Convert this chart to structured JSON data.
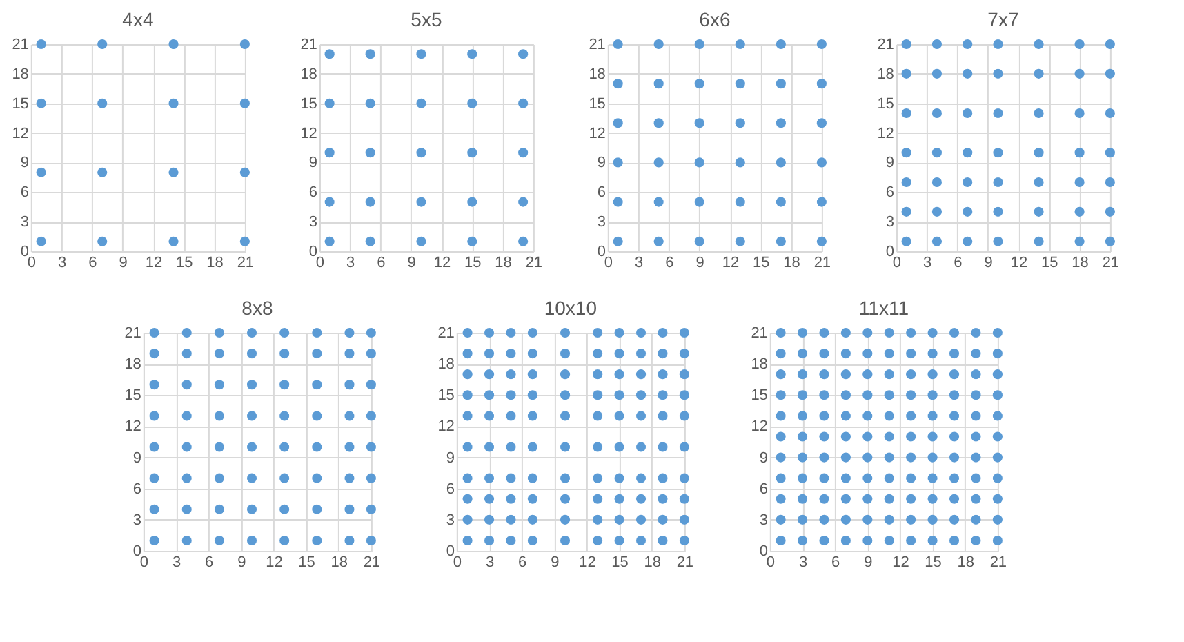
{
  "chart_data": [
    {
      "type": "scatter",
      "title": "4x4",
      "xlim": [
        0,
        21
      ],
      "ylim": [
        0,
        21
      ],
      "xticks": [
        0,
        3,
        6,
        9,
        12,
        15,
        18,
        21
      ],
      "yticks": [
        0,
        3,
        6,
        9,
        12,
        15,
        18,
        21
      ],
      "grid": true,
      "marker": "circle",
      "color": "#5b9bd5",
      "x": [
        1,
        7,
        14,
        21,
        1,
        7,
        14,
        21,
        1,
        7,
        14,
        21,
        1,
        7,
        14,
        21
      ],
      "values": [
        1,
        1,
        1,
        1,
        8,
        8,
        8,
        8,
        15,
        15,
        15,
        15,
        21,
        21,
        21,
        21
      ]
    },
    {
      "type": "scatter",
      "title": "5x5",
      "xlim": [
        0,
        21
      ],
      "ylim": [
        0,
        21
      ],
      "xticks": [
        0,
        3,
        6,
        9,
        12,
        15,
        18,
        21
      ],
      "yticks": [
        0,
        3,
        6,
        9,
        12,
        15,
        18,
        21
      ],
      "grid": true,
      "marker": "circle",
      "color": "#5b9bd5",
      "x": [
        1,
        5,
        10,
        15,
        20,
        1,
        5,
        10,
        15,
        20,
        1,
        5,
        10,
        15,
        20,
        1,
        5,
        10,
        15,
        20,
        1,
        5,
        10,
        15,
        20
      ],
      "values": [
        1,
        1,
        1,
        1,
        1,
        5,
        5,
        5,
        5,
        5,
        10,
        10,
        10,
        10,
        10,
        15,
        15,
        15,
        15,
        15,
        20,
        20,
        20,
        20,
        20
      ]
    },
    {
      "type": "scatter",
      "title": "6x6",
      "xlim": [
        0,
        21
      ],
      "ylim": [
        0,
        21
      ],
      "xticks": [
        0,
        3,
        6,
        9,
        12,
        15,
        18,
        21
      ],
      "yticks": [
        0,
        3,
        6,
        9,
        12,
        15,
        18,
        21
      ],
      "grid": true,
      "marker": "circle",
      "color": "#5b9bd5",
      "x": [
        1,
        5,
        9,
        13,
        17,
        21,
        1,
        5,
        9,
        13,
        17,
        21,
        1,
        5,
        9,
        13,
        17,
        21,
        1,
        5,
        9,
        13,
        17,
        21,
        1,
        5,
        9,
        13,
        17,
        21,
        1,
        5,
        9,
        13,
        17,
        21
      ],
      "values": [
        1,
        1,
        1,
        1,
        1,
        1,
        5,
        5,
        5,
        5,
        5,
        5,
        9,
        9,
        9,
        9,
        9,
        9,
        13,
        13,
        13,
        13,
        13,
        13,
        17,
        17,
        17,
        17,
        17,
        17,
        21,
        21,
        21,
        21,
        21,
        21
      ]
    },
    {
      "type": "scatter",
      "title": "7x7",
      "xlim": [
        0,
        21
      ],
      "ylim": [
        0,
        21
      ],
      "xticks": [
        0,
        3,
        6,
        9,
        12,
        15,
        18,
        21
      ],
      "yticks": [
        0,
        3,
        6,
        9,
        12,
        15,
        18,
        21
      ],
      "grid": true,
      "marker": "circle",
      "color": "#5b9bd5",
      "x": [
        1,
        4,
        7,
        10,
        14,
        18,
        21,
        1,
        4,
        7,
        10,
        14,
        18,
        21,
        1,
        4,
        7,
        10,
        14,
        18,
        21,
        1,
        4,
        7,
        10,
        14,
        18,
        21,
        1,
        4,
        7,
        10,
        14,
        18,
        21,
        1,
        4,
        7,
        10,
        14,
        18,
        21,
        1,
        4,
        7,
        10,
        14,
        18,
        21
      ],
      "values": [
        1,
        1,
        1,
        1,
        1,
        1,
        1,
        4,
        4,
        4,
        4,
        4,
        4,
        4,
        7,
        7,
        7,
        7,
        7,
        7,
        7,
        10,
        10,
        10,
        10,
        10,
        10,
        10,
        14,
        14,
        14,
        14,
        14,
        14,
        14,
        18,
        18,
        18,
        18,
        18,
        18,
        18,
        21,
        21,
        21,
        21,
        21,
        21,
        21
      ]
    },
    {
      "type": "scatter",
      "title": "8x8",
      "xlim": [
        0,
        21
      ],
      "ylim": [
        0,
        21
      ],
      "xticks": [
        0,
        3,
        6,
        9,
        12,
        15,
        18,
        21
      ],
      "yticks": [
        0,
        3,
        6,
        9,
        12,
        15,
        18,
        21
      ],
      "grid": true,
      "marker": "circle",
      "color": "#5b9bd5",
      "x": [
        1,
        4,
        7,
        10,
        13,
        16,
        19,
        21,
        1,
        4,
        7,
        10,
        13,
        16,
        19,
        21,
        1,
        4,
        7,
        10,
        13,
        16,
        19,
        21,
        1,
        4,
        7,
        10,
        13,
        16,
        19,
        21,
        1,
        4,
        7,
        10,
        13,
        16,
        19,
        21,
        1,
        4,
        7,
        10,
        13,
        16,
        19,
        21,
        1,
        4,
        7,
        10,
        13,
        16,
        19,
        21,
        1,
        4,
        7,
        10,
        13,
        16,
        19,
        21
      ],
      "values": [
        1,
        1,
        1,
        1,
        1,
        1,
        1,
        1,
        4,
        4,
        4,
        4,
        4,
        4,
        4,
        4,
        7,
        7,
        7,
        7,
        7,
        7,
        7,
        7,
        10,
        10,
        10,
        10,
        10,
        10,
        10,
        10,
        13,
        13,
        13,
        13,
        13,
        13,
        13,
        13,
        16,
        16,
        16,
        16,
        16,
        16,
        16,
        16,
        19,
        19,
        19,
        19,
        19,
        19,
        19,
        19,
        21,
        21,
        21,
        21,
        21,
        21,
        21,
        21
      ]
    },
    {
      "type": "scatter",
      "title": "10x10",
      "xlim": [
        0,
        21
      ],
      "ylim": [
        0,
        21
      ],
      "xticks": [
        0,
        3,
        6,
        9,
        12,
        15,
        18,
        21
      ],
      "yticks": [
        0,
        3,
        6,
        9,
        12,
        15,
        18,
        21
      ],
      "grid": true,
      "marker": "circle",
      "color": "#5b9bd5",
      "x": [
        1,
        3,
        5,
        7,
        10,
        13,
        15,
        17,
        19,
        21,
        1,
        3,
        5,
        7,
        10,
        13,
        15,
        17,
        19,
        21,
        1,
        3,
        5,
        7,
        10,
        13,
        15,
        17,
        19,
        21,
        1,
        3,
        5,
        7,
        10,
        13,
        15,
        17,
        19,
        21,
        1,
        3,
        5,
        7,
        10,
        13,
        15,
        17,
        19,
        21,
        1,
        3,
        5,
        7,
        10,
        13,
        15,
        17,
        19,
        21,
        1,
        3,
        5,
        7,
        10,
        13,
        15,
        17,
        19,
        21,
        1,
        3,
        5,
        7,
        10,
        13,
        15,
        17,
        19,
        21,
        1,
        3,
        5,
        7,
        10,
        13,
        15,
        17,
        19,
        21,
        1,
        3,
        5,
        7,
        10,
        13,
        15,
        17,
        19,
        21
      ],
      "values": [
        1,
        1,
        1,
        1,
        1,
        1,
        1,
        1,
        1,
        1,
        3,
        3,
        3,
        3,
        3,
        3,
        3,
        3,
        3,
        3,
        5,
        5,
        5,
        5,
        5,
        5,
        5,
        5,
        5,
        5,
        7,
        7,
        7,
        7,
        7,
        7,
        7,
        7,
        7,
        7,
        10,
        10,
        10,
        10,
        10,
        10,
        10,
        10,
        10,
        10,
        13,
        13,
        13,
        13,
        13,
        13,
        13,
        13,
        13,
        13,
        15,
        15,
        15,
        15,
        15,
        15,
        15,
        15,
        15,
        15,
        17,
        17,
        17,
        17,
        17,
        17,
        17,
        17,
        17,
        17,
        19,
        19,
        19,
        19,
        19,
        19,
        19,
        19,
        19,
        19,
        21,
        21,
        21,
        21,
        21,
        21,
        21,
        21,
        21,
        21
      ]
    },
    {
      "type": "scatter",
      "title": "11x11",
      "xlim": [
        0,
        21
      ],
      "ylim": [
        0,
        21
      ],
      "xticks": [
        0,
        3,
        6,
        9,
        12,
        15,
        18,
        21
      ],
      "yticks": [
        0,
        3,
        6,
        9,
        12,
        15,
        18,
        21
      ],
      "grid": true,
      "marker": "circle",
      "color": "#5b9bd5",
      "x": [
        1,
        3,
        5,
        7,
        9,
        11,
        13,
        15,
        17,
        19,
        21,
        1,
        3,
        5,
        7,
        9,
        11,
        13,
        15,
        17,
        19,
        21,
        1,
        3,
        5,
        7,
        9,
        11,
        13,
        15,
        17,
        19,
        21,
        1,
        3,
        5,
        7,
        9,
        11,
        13,
        15,
        17,
        19,
        21,
        1,
        3,
        5,
        7,
        9,
        11,
        13,
        15,
        17,
        19,
        21,
        1,
        3,
        5,
        7,
        9,
        11,
        13,
        15,
        17,
        19,
        21,
        1,
        3,
        5,
        7,
        9,
        11,
        13,
        15,
        17,
        19,
        21,
        1,
        3,
        5,
        7,
        9,
        11,
        13,
        15,
        17,
        19,
        21,
        1,
        3,
        5,
        7,
        9,
        11,
        13,
        15,
        17,
        19,
        21,
        1,
        3,
        5,
        7,
        9,
        11,
        13,
        15,
        17,
        19,
        21,
        1,
        3,
        5,
        7,
        9,
        11,
        13,
        15,
        17,
        19,
        21
      ],
      "values": [
        1,
        1,
        1,
        1,
        1,
        1,
        1,
        1,
        1,
        1,
        1,
        3,
        3,
        3,
        3,
        3,
        3,
        3,
        3,
        3,
        3,
        3,
        5,
        5,
        5,
        5,
        5,
        5,
        5,
        5,
        5,
        5,
        5,
        7,
        7,
        7,
        7,
        7,
        7,
        7,
        7,
        7,
        7,
        7,
        9,
        9,
        9,
        9,
        9,
        9,
        9,
        9,
        9,
        9,
        9,
        11,
        11,
        11,
        11,
        11,
        11,
        11,
        11,
        11,
        11,
        11,
        13,
        13,
        13,
        13,
        13,
        13,
        13,
        13,
        13,
        13,
        13,
        15,
        15,
        15,
        15,
        15,
        15,
        15,
        15,
        15,
        15,
        15,
        17,
        17,
        17,
        17,
        17,
        17,
        17,
        17,
        17,
        17,
        17,
        19,
        19,
        19,
        19,
        19,
        19,
        19,
        19,
        19,
        19,
        19,
        21,
        21,
        21,
        21,
        21,
        21,
        21,
        21,
        21,
        21,
        21
      ]
    }
  ]
}
